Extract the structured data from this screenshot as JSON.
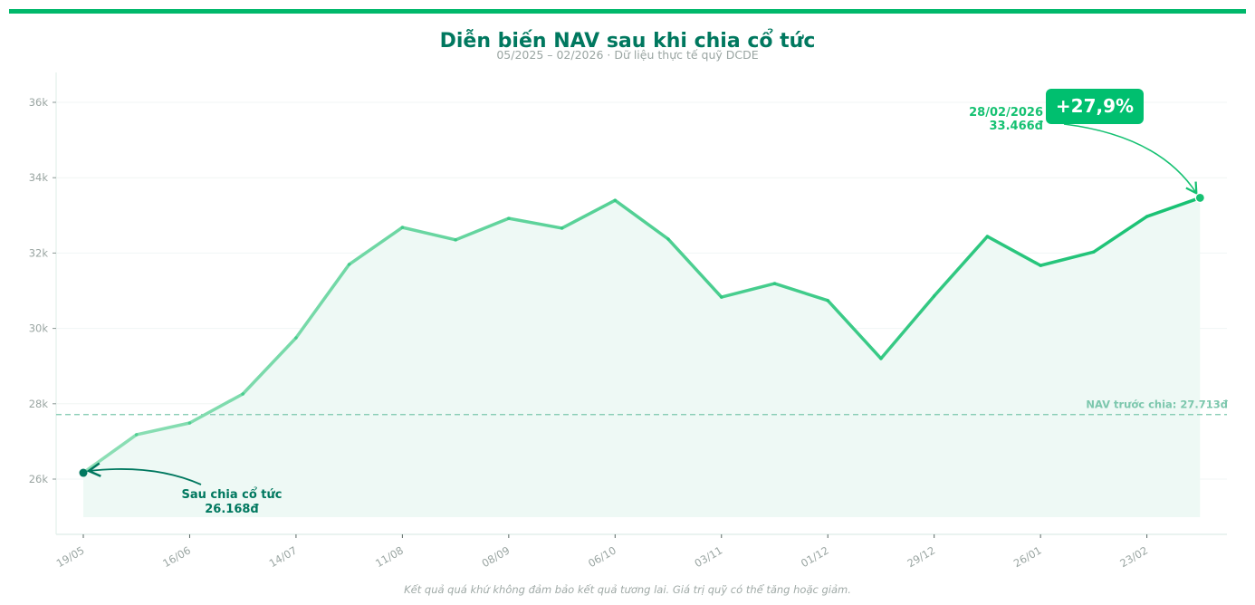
{
  "header": {
    "title": "Diễn biến NAV sau khi chia cổ tức",
    "subtitle": "05/2025 – 02/2026  ·  Dữ liệu thực tế quỹ DCDE"
  },
  "footer": {
    "disclaimer": "Kết quả quá khứ không đảm bảo kết quả tương lai. Giá trị quỹ có thể tăng hoặc giảm."
  },
  "colors": {
    "accent": "#00b86b",
    "title": "#00785f",
    "line_start": "#8edfb6",
    "line_end": "#16c172",
    "fill": "#eef9f5",
    "start_marker": "#00785f",
    "reference": "#7cc7ad",
    "badge": "#00bf6f"
  },
  "annotations": {
    "start_label_line1": "Sau chia cổ tức",
    "start_label_line2": "26.168đ",
    "end_label_line1": "28/02/2026",
    "end_label_line2": "33.466đ",
    "badge": "+27,9%",
    "reference_label": "NAV trước chia: 27.713đ"
  },
  "chart_data": {
    "type": "line",
    "title": "Diễn biến NAV sau khi chia cổ tức",
    "subtitle": "05/2025 – 02/2026 · Dữ liệu thực tế quỹ DCDE",
    "xlabel": "",
    "ylabel": "",
    "x": [
      "19/05",
      "02/06",
      "16/06",
      "30/06",
      "14/07",
      "28/07",
      "11/08",
      "25/08",
      "08/09",
      "22/09",
      "06/10",
      "20/10",
      "03/11",
      "17/11",
      "01/12",
      "15/12",
      "29/12",
      "12/01",
      "26/01",
      "09/02",
      "23/02",
      "28/02"
    ],
    "values": [
      26168,
      27180,
      27490,
      28260,
      29750,
      31700,
      32680,
      32350,
      32920,
      32660,
      33400,
      32370,
      30830,
      31190,
      30740,
      29200,
      30860,
      32440,
      31670,
      32030,
      32970,
      33466
    ],
    "x_tick_labels": [
      "19/05",
      "16/06",
      "14/07",
      "11/08",
      "08/09",
      "06/10",
      "03/11",
      "01/12",
      "29/12",
      "26/01",
      "23/02"
    ],
    "y_ticks": [
      26000,
      28000,
      30000,
      32000,
      34000,
      36000
    ],
    "y_tick_labels": [
      "26k",
      "28k",
      "30k",
      "32k",
      "34k",
      "36k"
    ],
    "ylim": [
      25000,
      36800
    ],
    "grid": true,
    "reference_line": {
      "value": 27713,
      "label": "NAV trước chia: 27.713đ",
      "style": "dashed"
    },
    "annotations": [
      {
        "point": "19/05",
        "value": 26168,
        "text": "Sau chia cổ tức\n26.168đ"
      },
      {
        "point": "28/02",
        "value": 33466,
        "text": "28/02/2026\n33.466đ"
      },
      {
        "point": "28/02",
        "text": "+27,9%",
        "type": "badge"
      }
    ],
    "legend": null
  }
}
